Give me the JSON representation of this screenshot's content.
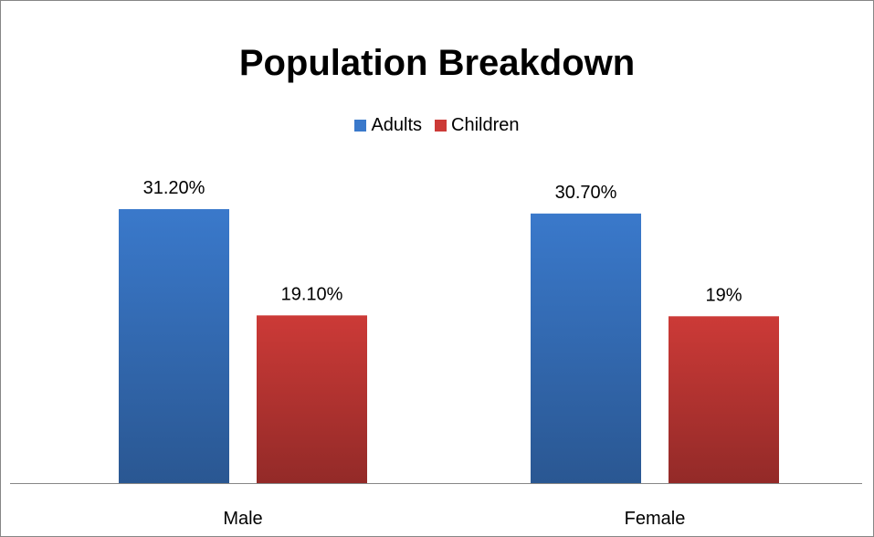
{
  "chart_data": {
    "type": "bar",
    "title": "Population Breakdown",
    "categories": [
      "Male",
      "Female"
    ],
    "series": [
      {
        "name": "Adults",
        "values": [
          31.2,
          30.7
        ],
        "labels": [
          "31.20%",
          "30.70%"
        ],
        "color": "#3A79CB"
      },
      {
        "name": "Children",
        "values": [
          19.1,
          19.0
        ],
        "labels": [
          "19.10%",
          "19%"
        ],
        "color": "#CC3A37"
      }
    ],
    "ylim": [
      0,
      35
    ],
    "grid": false,
    "legend_position": "top"
  }
}
